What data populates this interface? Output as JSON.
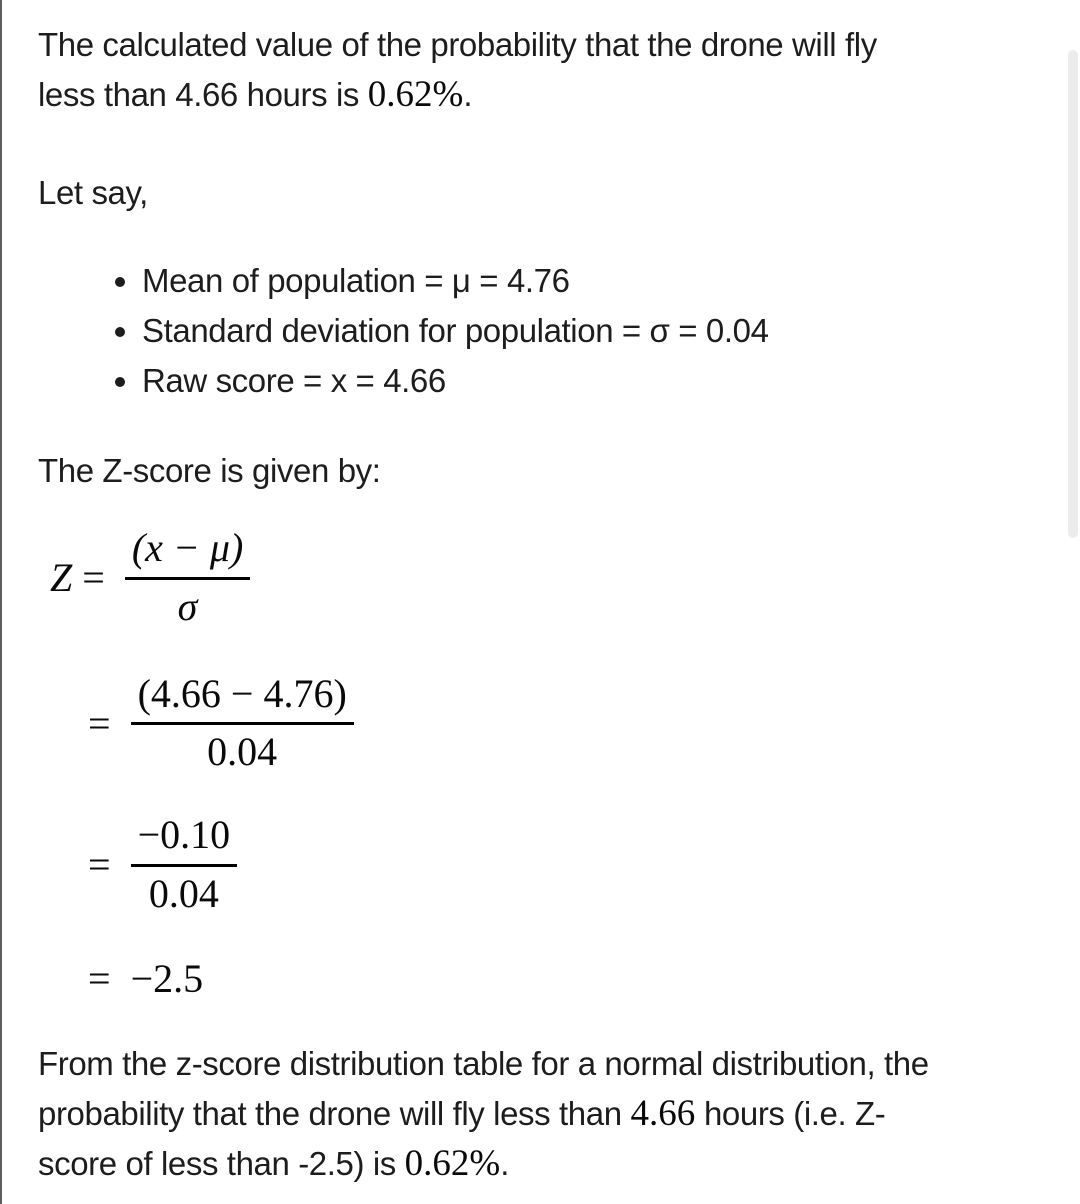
{
  "colors": {
    "text": "#1d1d1d",
    "math_text": "#0a0a0a",
    "scrollbar_thumb": "#ececec",
    "left_border": "#5e5e5e"
  },
  "intro": {
    "line1": "The calculated value of the probability that the drone will fly",
    "line2_before": "less than 4.66 hours is ",
    "line2_math": "0.62%",
    "line2_after": "."
  },
  "lets_say": "Let say,",
  "bullets": [
    "Mean of population = μ = 4.76",
    "Standard deviation for population = σ = 0.04",
    "Raw score = x = 4.66"
  ],
  "zscore_intro": "The Z-score is given by:",
  "formulas": {
    "definition": {
      "lhs": "Z",
      "eq": "=",
      "numerator": "(x − μ)",
      "denominator": "σ"
    },
    "step1": {
      "eq": "=",
      "numerator": "(4.66 − 4.76)",
      "denominator": "0.04"
    },
    "step2": {
      "eq": "=",
      "numerator": "−0.10",
      "denominator": "0.04"
    },
    "result": {
      "eq": "=",
      "value": "−2.5"
    }
  },
  "conclusion": {
    "line1": "From the z-score distribution table for a normal distribution, the",
    "line2_before": "probability that the drone will fly less than ",
    "line2_math": "4.66",
    "line2_after": " hours (i.e. Z-",
    "line3_before": "score of less than -2.5) is ",
    "line3_math": "0.62%",
    "line3_after": "."
  }
}
